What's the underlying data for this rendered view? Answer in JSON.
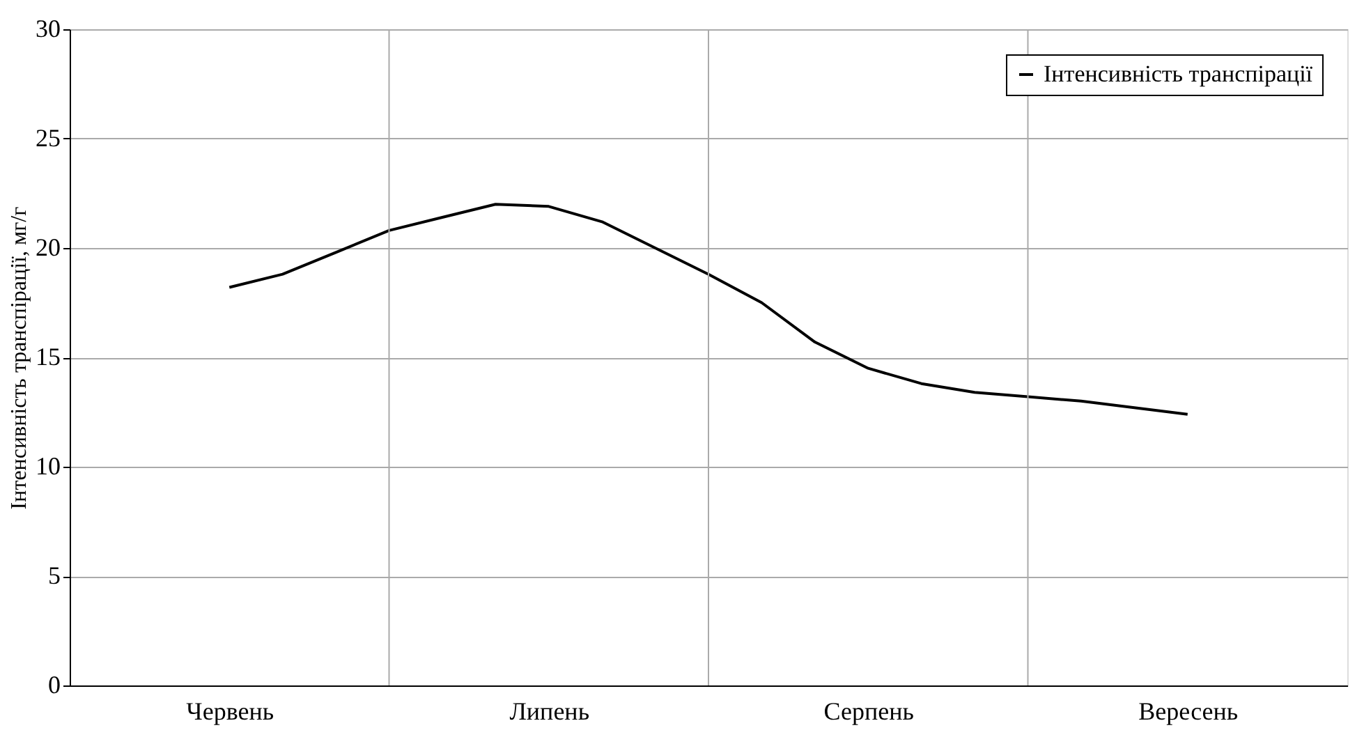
{
  "chart_data": {
    "type": "line",
    "ylabel": "Інтенсивність транспірації, мг/г",
    "categories": [
      "Червень",
      null,
      null,
      null,
      null,
      null,
      "Липень",
      null,
      null,
      null,
      null,
      null,
      "Серпень",
      null,
      null,
      null,
      null,
      null,
      "Вересень"
    ],
    "series": [
      {
        "name": "Інтенсивність транспірації",
        "color": "#000000",
        "values": [
          18.2,
          18.8,
          19.8,
          20.8,
          21.4,
          22.0,
          21.9,
          21.2,
          20.0,
          18.8,
          17.5,
          15.7,
          14.5,
          13.8,
          13.4,
          13.2,
          13.0,
          12.7,
          12.4
        ]
      }
    ],
    "ylim": [
      0,
      30
    ],
    "yticks": [
      0,
      5,
      10,
      15,
      20,
      25,
      30
    ],
    "grid": true,
    "legend": "top right",
    "marker": "none",
    "line_style": "solid"
  }
}
